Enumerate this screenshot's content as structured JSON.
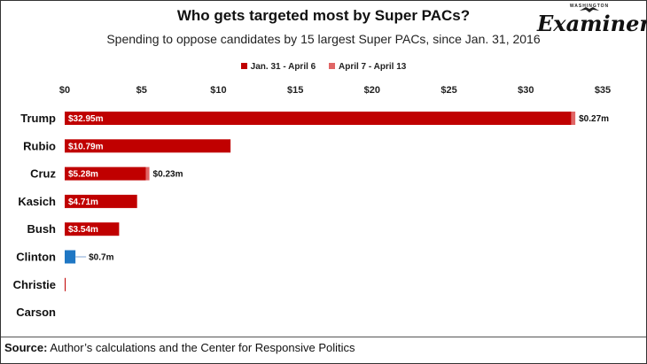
{
  "title": "Who gets targeted most by Super PACs?",
  "subtitle": "Spending to oppose candidates by 15 largest Super PACs, since Jan. 31, 2016",
  "brand": {
    "top": "WASHINGTON",
    "name": "Examiner"
  },
  "source": {
    "label": "Source:",
    "text": "Author’s calculations and the Center for Responsive Politics"
  },
  "colors": {
    "primary": "#c00000",
    "secondary": "#e06666",
    "clinton": "#1f77c4"
  },
  "chart_data": {
    "type": "bar",
    "orientation": "horizontal",
    "stacked": true,
    "categories": [
      "Trump",
      "Rubio",
      "Cruz",
      "Kasich",
      "Bush",
      "Clinton",
      "Christie",
      "Carson"
    ],
    "series": [
      {
        "name": "Jan. 31 - April 6",
        "values": [
          32.95,
          10.79,
          5.28,
          4.71,
          3.54,
          0.7,
          0.05,
          0
        ]
      },
      {
        "name": "April 7 - April 13",
        "values": [
          0.27,
          0,
          0.23,
          0,
          0,
          0,
          0,
          0
        ]
      }
    ],
    "data_labels": {
      "inside": [
        "$32.95m",
        "$10.79m",
        "$5.28m",
        "$4.71m",
        "$3.54m",
        "",
        "",
        ""
      ],
      "outside": [
        "$0.27m",
        "",
        "$0.23m",
        "",
        "",
        "$0.7m",
        "",
        ""
      ]
    },
    "x_ticks": [
      "$0",
      "$5",
      "$10",
      "$15",
      "$20",
      "$25",
      "$30",
      "$35"
    ],
    "xlim": [
      0,
      35
    ],
    "xlabel": "",
    "ylabel": "",
    "legend_position": "top-center",
    "grid": false
  }
}
